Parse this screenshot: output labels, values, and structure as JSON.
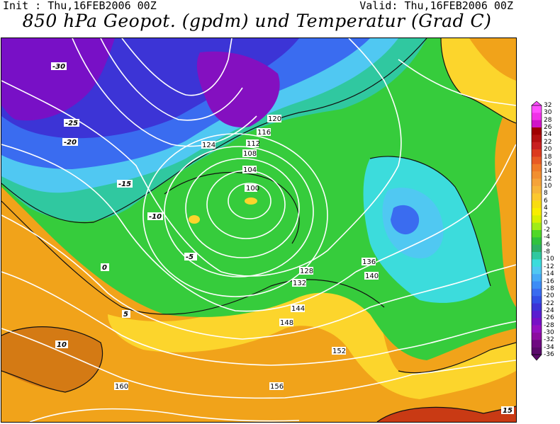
{
  "header": {
    "init_text": "Init : Thu,16FEB2006  00Z",
    "valid_text": "Valid: Thu,16FEB2006  00Z",
    "title": "850 hPa Geopot. (gpdm) und Temperatur (Grad C)"
  },
  "legend": {
    "levels": [
      "32",
      "30",
      "28",
      "26",
      "24",
      "22",
      "20",
      "18",
      "16",
      "14",
      "12",
      "10",
      "8",
      "6",
      "4",
      "2",
      "0",
      "-2",
      "-4",
      "-6",
      "-8",
      "-10",
      "-12",
      "-14",
      "-16",
      "-18",
      "-20",
      "-22",
      "-24",
      "-26",
      "-28",
      "-30",
      "-32",
      "-34",
      "-36"
    ],
    "colors": [
      "#ff4fff",
      "#f032e8",
      "#d014c8",
      "#a00000",
      "#b41010",
      "#c82020",
      "#dc3a1e",
      "#e85a24",
      "#f07a28",
      "#f28f30",
      "#f5a33a",
      "#f7b53a",
      "#fcc82e",
      "#f8dc10",
      "#f8ee00",
      "#d8f000",
      "#a0ec18",
      "#50d828",
      "#30c23e",
      "#2eb064",
      "#30c8a0",
      "#3cdcdc",
      "#50c8f2",
      "#46aaf6",
      "#3c8cf6",
      "#3a6cf0",
      "#3250e6",
      "#3c34d6",
      "#5a1ed0",
      "#7810c6",
      "#9410c0",
      "#8c0ca0",
      "#6e0a80",
      "#5a0a6a"
    ]
  },
  "map": {
    "contour_labels": {
      "geopotential": [
        "144",
        "140",
        "136",
        "132",
        "128",
        "124",
        "120",
        "116",
        "112",
        "108",
        "104",
        "100",
        "152",
        "148",
        "160",
        "156"
      ],
      "temperature": [
        "-30",
        "-25",
        "-20",
        "-15",
        "-10",
        "-5",
        "0",
        "5",
        "10",
        "15"
      ]
    },
    "colors": {
      "temp_pos": "#f1a31a",
      "temp_zero": "#fcd52c",
      "temp_neg": "#36cc3c",
      "temp_very_cold": "#8410c0",
      "geopotential_contour": "#ffffff",
      "temperature_contour": "#111111"
    }
  }
}
